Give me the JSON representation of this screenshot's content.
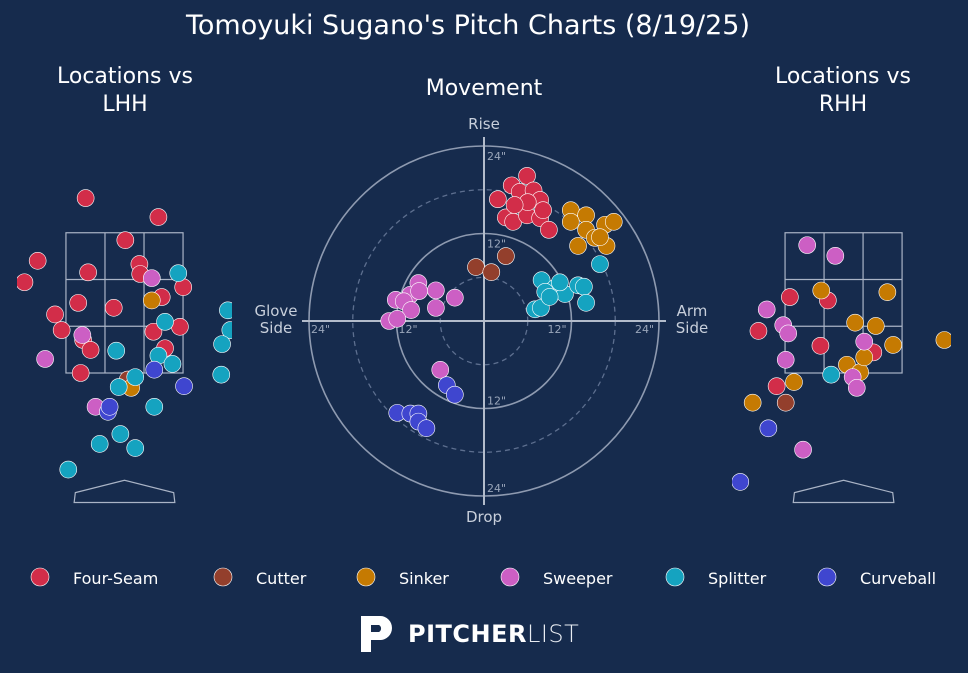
{
  "title": "Tomoyuki Sugano's Pitch Charts (8/19/25)",
  "logo": {
    "bold": "PITCHER",
    "light": "LIST"
  },
  "chart_data": [
    {
      "type": "scatter",
      "title": "Locations vs LHH",
      "xlim": [
        -1.3,
        1.3
      ],
      "ylim": [
        0,
        4
      ],
      "series": [
        {
          "name": "Four-Seam",
          "color": "#d22d49",
          "x": [
            -0.47,
            0.41,
            0.01,
            -1.05,
            -1.21,
            -0.44,
            0.18,
            0.19,
            0.71,
            0.45,
            -0.56,
            -0.13,
            -0.84,
            -0.76,
            0.35,
            0.67,
            -0.5,
            -0.41,
            0.49,
            -0.53
          ],
          "values": [
            3.72,
            3.49,
            3.21,
            2.96,
            2.7,
            2.82,
            2.92,
            2.8,
            2.64,
            2.52,
            2.45,
            2.39,
            2.31,
            2.12,
            2.1,
            2.16,
            2.0,
            1.88,
            1.9,
            1.6
          ]
        },
        {
          "name": "Cutter",
          "color": "#933f2c",
          "x": [
            0.04
          ],
          "values": [
            1.52
          ]
        },
        {
          "name": "Sinker",
          "color": "#c57a02",
          "x": [
            0.33,
            0.08
          ],
          "values": [
            2.48,
            1.42
          ]
        },
        {
          "name": "Sweeper",
          "color": "#cc5fc4",
          "x": [
            0.33,
            -0.51,
            -0.96,
            -0.35
          ],
          "values": [
            2.75,
            2.06,
            1.77,
            1.19
          ]
        },
        {
          "name": "Splitter",
          "color": "#15a3c0",
          "x": [
            0.65,
            1.25,
            1.28,
            1.18,
            0.49,
            0.41,
            0.58,
            -0.1,
            1.17,
            -0.07,
            0.13,
            0.36,
            -0.05,
            -0.3,
            0.13,
            -0.68
          ],
          "values": [
            2.81,
            2.36,
            2.12,
            1.95,
            2.22,
            1.81,
            1.71,
            1.87,
            1.58,
            1.43,
            1.55,
            1.19,
            0.86,
            0.74,
            0.69,
            0.43
          ]
        },
        {
          "name": "Curveball",
          "color": "#3f46cf",
          "x": [
            0.36,
            0.72,
            -0.2,
            -0.18
          ],
          "values": [
            1.64,
            1.44,
            1.13,
            1.19
          ]
        }
      ]
    },
    {
      "type": "movement",
      "title": "Movement",
      "xlim": [
        -24,
        24
      ],
      "ylim": [
        -24,
        24
      ],
      "labels": {
        "top": "Rise",
        "bottom": "Drop",
        "left": "Glove Side",
        "right": "Arm Side"
      },
      "rings": [
        {
          "value": 12,
          "label": "12\""
        },
        {
          "value": 24,
          "label": "24\""
        }
      ],
      "minor_rings": [
        6,
        18
      ],
      "series": [
        {
          "name": "Four-Seam",
          "color": "#d22d49",
          "x": [
            1.9,
            3.8,
            5.9,
            4.9,
            6.8,
            7.7,
            3.0,
            4.0,
            5.9,
            7.7,
            8.9,
            6.0,
            4.2,
            8.1
          ],
          "values": [
            16.7,
            18.6,
            19.9,
            17.7,
            17.9,
            16.6,
            14.2,
            13.6,
            14.5,
            14.1,
            12.5,
            16.3,
            15.9,
            15.2
          ]
        },
        {
          "name": "Cutter",
          "color": "#933f2c",
          "x": [
            -1.1,
            1.0,
            3.0
          ],
          "values": [
            7.4,
            6.7,
            8.9
          ]
        },
        {
          "name": "Sinker",
          "color": "#c57a02",
          "x": [
            11.9,
            14.0,
            16.6,
            17.8,
            11.9,
            14.0,
            12.9,
            15.2,
            16.8,
            15.9
          ],
          "values": [
            15.2,
            14.5,
            13.2,
            13.6,
            13.6,
            12.5,
            10.3,
            11.4,
            10.3,
            11.5
          ]
        },
        {
          "name": "Sweeper",
          "color": "#cc5fc4",
          "x": [
            -9.0,
            -6.6,
            -12.1,
            -10.1,
            -11.0,
            -8.9,
            -10.0,
            -6.6,
            -4.0,
            -13.0,
            -11.9,
            -6.0
          ],
          "values": [
            5.2,
            4.2,
            2.9,
            3.6,
            2.7,
            4.1,
            1.5,
            1.8,
            3.2,
            0,
            0.3,
            -6.7
          ]
        },
        {
          "name": "Splitter",
          "color": "#15a3c0",
          "x": [
            7.9,
            9.7,
            8.4,
            11.1,
            12.9,
            13.7,
            14.0,
            7.0,
            7.8,
            15.9,
            10.4,
            9.0
          ],
          "values": [
            5.6,
            4.5,
            4.0,
            3.7,
            4.9,
            4.7,
            2.5,
            1.6,
            1.8,
            7.8,
            5.3,
            3.3
          ]
        },
        {
          "name": "Curveball",
          "color": "#3f46cf",
          "x": [
            -5.1,
            -4.0,
            -11.9,
            -10.1,
            -9.0,
            -9.0,
            -7.9
          ],
          "values": [
            -8.8,
            -10.1,
            -12.6,
            -12.7,
            -12.7,
            -13.8,
            -14.7
          ]
        }
      ]
    },
    {
      "type": "scatter",
      "title": "Locations vs RHH",
      "xlim": [
        -1.35,
        1.3
      ],
      "ylim": [
        0,
        4
      ],
      "series": [
        {
          "name": "Four-Seam",
          "color": "#d22d49",
          "x": [
            -0.65,
            -0.19,
            -1.03,
            -0.28,
            0.36,
            -0.81
          ],
          "values": [
            2.52,
            2.48,
            2.11,
            1.93,
            1.85,
            1.44
          ]
        },
        {
          "name": "Cutter",
          "color": "#933f2c",
          "x": [
            -0.7
          ],
          "values": [
            1.24
          ]
        },
        {
          "name": "Sinker",
          "color": "#c57a02",
          "x": [
            -0.27,
            0.53,
            0.14,
            0.39,
            0.6,
            1.22,
            0.04,
            0.2,
            0.25,
            -0.6,
            -1.1
          ],
          "values": [
            2.6,
            2.58,
            2.21,
            2.17,
            1.94,
            2.0,
            1.7,
            1.61,
            1.79,
            1.49,
            1.24
          ]
        },
        {
          "name": "Sweeper",
          "color": "#cc5fc4",
          "x": [
            -0.44,
            -0.1,
            -0.93,
            -0.73,
            -0.67,
            -0.7,
            0.25,
            0.11,
            0.16,
            -0.49
          ],
          "values": [
            3.15,
            3.02,
            2.37,
            2.18,
            2.08,
            1.76,
            1.98,
            1.55,
            1.42,
            0.67
          ]
        },
        {
          "name": "Splitter",
          "color": "#15a3c0",
          "x": [
            -0.15
          ],
          "values": [
            1.58
          ]
        },
        {
          "name": "Curveball",
          "color": "#3f46cf",
          "x": [
            -0.91,
            -1.25
          ],
          "values": [
            0.93,
            0.28
          ]
        }
      ]
    }
  ]
}
